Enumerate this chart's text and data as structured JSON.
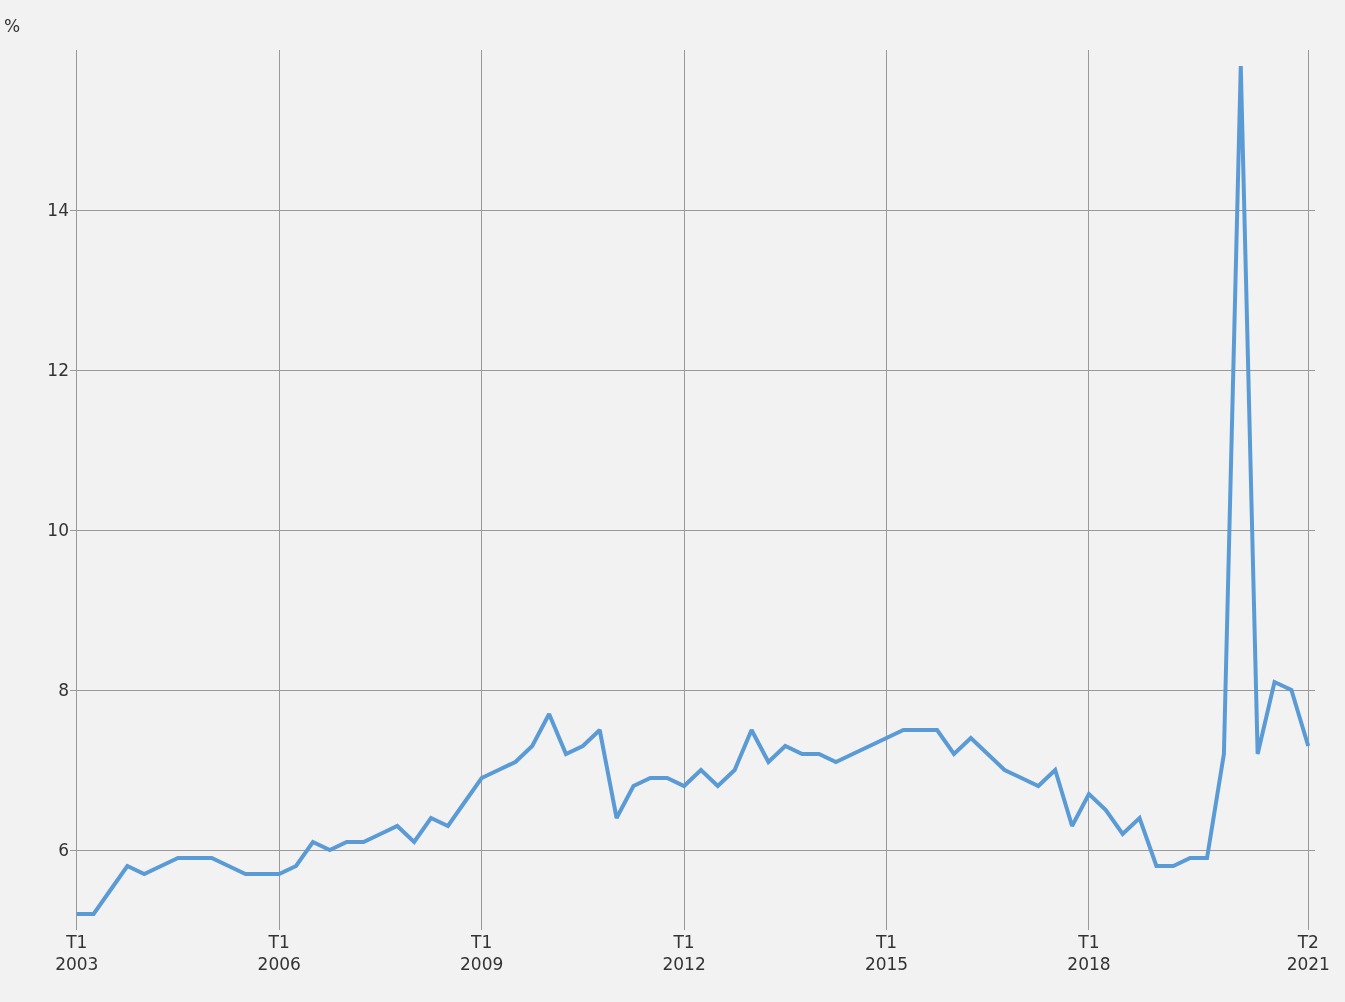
{
  "chart_data": {
    "type": "line",
    "ylabel": "%",
    "categories": [
      "T1\n2003",
      null,
      null,
      null,
      null,
      null,
      null,
      null,
      null,
      null,
      null,
      null,
      "T1\n2006",
      null,
      null,
      null,
      null,
      null,
      null,
      null,
      null,
      null,
      null,
      null,
      "T1\n2009",
      null,
      null,
      null,
      null,
      null,
      null,
      null,
      null,
      null,
      null,
      null,
      "T1\n2012",
      null,
      null,
      null,
      null,
      null,
      null,
      null,
      null,
      null,
      null,
      null,
      "T1\n2015",
      null,
      null,
      null,
      null,
      null,
      null,
      null,
      null,
      null,
      null,
      null,
      "T1\n2018",
      null,
      null,
      null,
      null,
      null,
      null,
      null,
      null,
      null,
      null,
      null,
      null,
      "T2\n2021"
    ],
    "series": [
      {
        "color": "#5b9bd5",
        "values": [
          5.2,
          5.2,
          5.5,
          5.8,
          5.7,
          5.8,
          5.9,
          5.9,
          5.9,
          5.8,
          5.7,
          5.7,
          5.7,
          5.8,
          6.1,
          6.0,
          6.1,
          6.1,
          6.2,
          6.3,
          6.1,
          6.4,
          6.3,
          6.6,
          6.9,
          7.0,
          7.1,
          7.3,
          7.7,
          7.2,
          7.3,
          7.5,
          6.4,
          6.8,
          6.9,
          6.9,
          6.8,
          7.0,
          6.8,
          7.0,
          7.5,
          7.1,
          7.3,
          7.2,
          7.2,
          7.1,
          7.2,
          7.3,
          7.4,
          7.5,
          7.5,
          7.5,
          7.2,
          7.4,
          7.2,
          7.0,
          6.9,
          6.8,
          7.0,
          6.3,
          6.7,
          6.5,
          6.2,
          6.4,
          5.8,
          5.8,
          5.9,
          5.9,
          7.2,
          15.8,
          7.2,
          8.1,
          8.0,
          7.3
        ]
      }
    ],
    "ylim": [
      5,
      16
    ],
    "yticks": [
      6,
      8,
      10,
      12,
      14
    ],
    "grid": true,
    "marker": "none",
    "line_style": "solid"
  }
}
